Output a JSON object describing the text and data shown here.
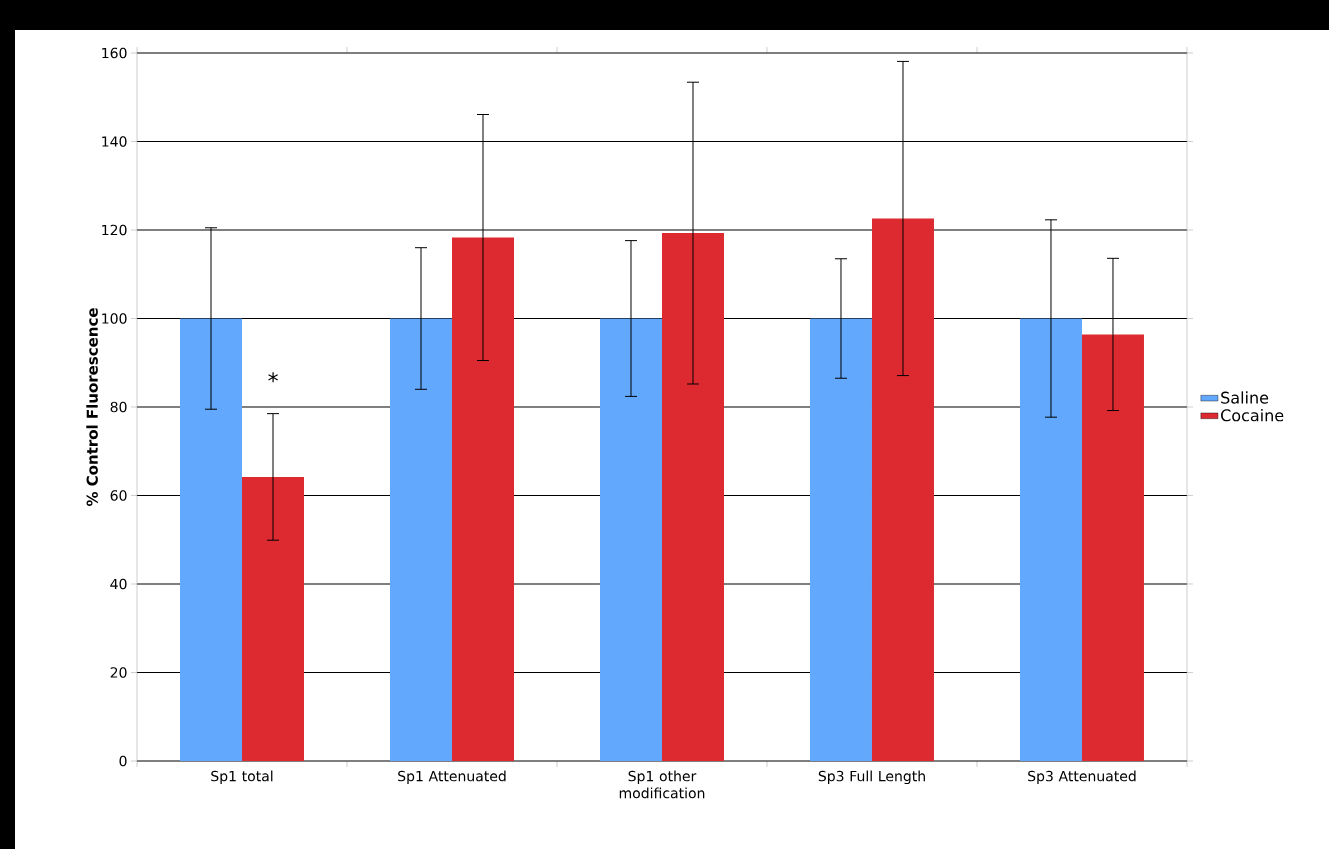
{
  "chart_data": {
    "type": "bar",
    "ylabel": "% Control Fluorescence",
    "categories": [
      "Sp1 total",
      "Sp1 Attenuated",
      "Sp1 other modification",
      "Sp3 Full Length",
      "Sp3 Attenuated"
    ],
    "series": [
      {
        "name": "Saline",
        "color": "#62a8fc",
        "values": [
          100,
          100,
          100,
          100,
          100
        ],
        "errors": [
          20.5,
          16,
          17.6,
          13.5,
          22.3
        ]
      },
      {
        "name": "Cocaine",
        "color": "#dc2a30",
        "values": [
          64.2,
          118.3,
          119.3,
          122.6,
          96.4
        ],
        "errors": [
          14.3,
          27.8,
          34.1,
          35.5,
          17.2
        ]
      }
    ],
    "ylim": [
      0,
      160
    ],
    "yticks": [
      0,
      20,
      40,
      60,
      80,
      100,
      120,
      140,
      160
    ],
    "grid": "y",
    "legend": "right",
    "annotations": [
      {
        "text": "*",
        "x": "Sp1 total",
        "y": 86
      }
    ]
  }
}
